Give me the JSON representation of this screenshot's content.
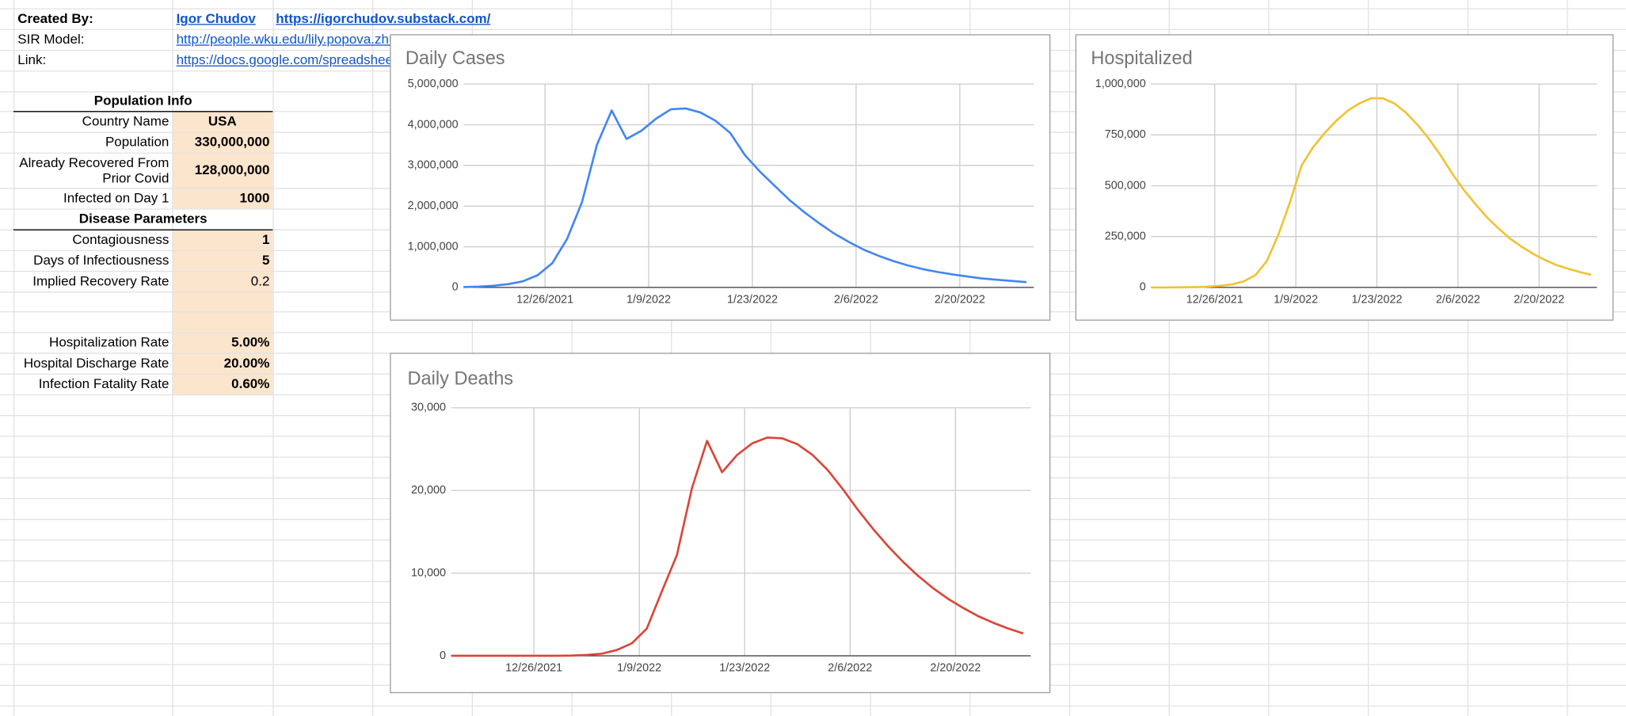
{
  "sheet": {
    "created_by_label": "Created By:",
    "author": "Igor Chudov",
    "substack": "https://igorchudov.substack.com/",
    "sir_model_label": "SIR Model:",
    "sir_model_url": "http://people.wku.edu/lily.popova.zhu",
    "link_label": "Link:",
    "link_url": "https://docs.google.com/spreadsheet",
    "population_header": "Population Info",
    "population_rows": [
      [
        "Country Name",
        "USA"
      ],
      [
        "Population",
        "330,000,000"
      ],
      [
        "Already Recovered From Prior Covid",
        "128,000,000"
      ],
      [
        "Infected on Day 1",
        "1000"
      ]
    ],
    "disease_header": "Disease Parameters",
    "disease_rows": [
      [
        "Contagiousness",
        "1"
      ],
      [
        "Days of Infectiousness",
        "5"
      ],
      [
        "Implied Recovery Rate",
        "0.2"
      ]
    ],
    "rate_rows": [
      [
        "Hospitalization Rate",
        "5.00%"
      ],
      [
        "Hospital Discharge Rate",
        "20.00%"
      ],
      [
        "Infection Fatality Rate",
        "0.60%"
      ]
    ]
  },
  "chart_data": [
    {
      "type": "line",
      "title": "Daily Cases",
      "color": "#4285f4",
      "grid": true,
      "x": [
        "12/15/2021",
        "12/17/2021",
        "12/19/2021",
        "12/21/2021",
        "12/23/2021",
        "12/25/2021",
        "12/27/2021",
        "12/29/2021",
        "12/31/2021",
        "1/2/2022",
        "1/4/2022",
        "1/6/2022",
        "1/8/2022",
        "1/10/2022",
        "1/12/2022",
        "1/14/2022",
        "1/16/2022",
        "1/18/2022",
        "1/20/2022",
        "1/22/2022",
        "1/24/2022",
        "1/26/2022",
        "1/28/2022",
        "1/30/2022",
        "2/1/2022",
        "2/3/2022",
        "2/5/2022",
        "2/7/2022",
        "2/9/2022",
        "2/11/2022",
        "2/13/2022",
        "2/15/2022",
        "2/17/2022",
        "2/19/2022",
        "2/21/2022",
        "2/23/2022",
        "2/25/2022",
        "2/27/2022",
        "3/1/2022"
      ],
      "values": [
        10000,
        20000,
        40000,
        80000,
        150000,
        300000,
        600000,
        1200000,
        2100000,
        3500000,
        4350000,
        3650000,
        3850000,
        4150000,
        4380000,
        4400000,
        4300000,
        4100000,
        3800000,
        3250000,
        2850000,
        2500000,
        2150000,
        1850000,
        1580000,
        1330000,
        1120000,
        930000,
        780000,
        650000,
        540000,
        450000,
        380000,
        320000,
        270000,
        220000,
        190000,
        160000,
        130000
      ],
      "xlim": [
        "12/15/2021",
        "3/2/2022"
      ],
      "xticks": [
        "12/26/2021",
        "1/9/2022",
        "1/23/2022",
        "2/6/2022",
        "2/20/2022"
      ],
      "ylim": [
        0,
        5000000
      ],
      "yticks": [
        0,
        {
          "value": 1000000,
          "label": "1,000,000"
        },
        {
          "value": 2000000,
          "label": "2,000,000"
        },
        {
          "value": 3000000,
          "label": "3,000,000"
        },
        {
          "value": 4000000,
          "label": "4,000,000"
        },
        {
          "value": 5000000,
          "label": "5,000,000"
        }
      ]
    },
    {
      "type": "line",
      "title": "Hospitalized",
      "color": "#f1c232",
      "grid": true,
      "x": [
        "12/15/2021",
        "12/17/2021",
        "12/19/2021",
        "12/21/2021",
        "12/23/2021",
        "12/25/2021",
        "12/27/2021",
        "12/29/2021",
        "12/31/2021",
        "1/2/2022",
        "1/4/2022",
        "1/6/2022",
        "1/8/2022",
        "1/10/2022",
        "1/12/2022",
        "1/14/2022",
        "1/16/2022",
        "1/18/2022",
        "1/20/2022",
        "1/22/2022",
        "1/24/2022",
        "1/26/2022",
        "1/28/2022",
        "1/30/2022",
        "2/1/2022",
        "2/3/2022",
        "2/5/2022",
        "2/7/2022",
        "2/9/2022",
        "2/11/2022",
        "2/13/2022",
        "2/15/2022",
        "2/17/2022",
        "2/19/2022",
        "2/21/2022",
        "2/23/2022",
        "2/25/2022",
        "2/27/2022",
        "3/1/2022"
      ],
      "values": [
        0,
        0,
        500,
        1000,
        2000,
        4000,
        8000,
        15000,
        30000,
        60000,
        130000,
        260000,
        420000,
        600000,
        690000,
        760000,
        820000,
        870000,
        905000,
        930000,
        930000,
        905000,
        860000,
        800000,
        730000,
        650000,
        560000,
        480000,
        410000,
        345000,
        290000,
        240000,
        200000,
        165000,
        135000,
        110000,
        92000,
        76000,
        62000
      ],
      "xlim": [
        "12/15/2021",
        "3/2/2022"
      ],
      "xticks": [
        "12/26/2021",
        "1/9/2022",
        "1/23/2022",
        "2/6/2022",
        "2/20/2022"
      ],
      "ylim": [
        0,
        1000000
      ],
      "yticks": [
        0,
        {
          "value": 250000,
          "label": "250,000"
        },
        {
          "value": 500000,
          "label": "500,000"
        },
        {
          "value": 750000,
          "label": "750,000"
        },
        {
          "value": 1000000,
          "label": "1,000,000"
        }
      ]
    },
    {
      "type": "line",
      "title": "Daily Deaths",
      "color": "#db4437",
      "grid": true,
      "x": [
        "12/15/2021",
        "12/17/2021",
        "12/19/2021",
        "12/21/2021",
        "12/23/2021",
        "12/25/2021",
        "12/27/2021",
        "12/29/2021",
        "12/31/2021",
        "1/2/2022",
        "1/4/2022",
        "1/6/2022",
        "1/8/2022",
        "1/10/2022",
        "1/12/2022",
        "1/14/2022",
        "1/16/2022",
        "1/18/2022",
        "1/20/2022",
        "1/22/2022",
        "1/24/2022",
        "1/26/2022",
        "1/28/2022",
        "1/30/2022",
        "2/1/2022",
        "2/3/2022",
        "2/5/2022",
        "2/7/2022",
        "2/9/2022",
        "2/11/2022",
        "2/13/2022",
        "2/15/2022",
        "2/17/2022",
        "2/19/2022",
        "2/21/2022",
        "2/23/2022",
        "2/25/2022",
        "2/27/2022",
        "3/1/2022"
      ],
      "values": [
        0,
        0,
        0,
        0,
        0,
        0,
        0,
        10,
        30,
        100,
        250,
        700,
        1500,
        3300,
        7800,
        12200,
        20300,
        26000,
        22200,
        24300,
        25700,
        26400,
        26300,
        25600,
        24300,
        22500,
        20200,
        17700,
        15400,
        13300,
        11400,
        9700,
        8200,
        6900,
        5800,
        4800,
        4000,
        3300,
        2700
      ],
      "xlim": [
        "12/15/2021",
        "3/2/2022"
      ],
      "xticks": [
        "12/26/2021",
        "1/9/2022",
        "1/23/2022",
        "2/6/2022",
        "2/20/2022"
      ],
      "ylim": [
        0,
        30000
      ],
      "yticks": [
        0,
        {
          "value": 10000,
          "label": "10,000"
        },
        {
          "value": 20000,
          "label": "20,000"
        },
        {
          "value": 30000,
          "label": "30,000"
        }
      ]
    }
  ]
}
